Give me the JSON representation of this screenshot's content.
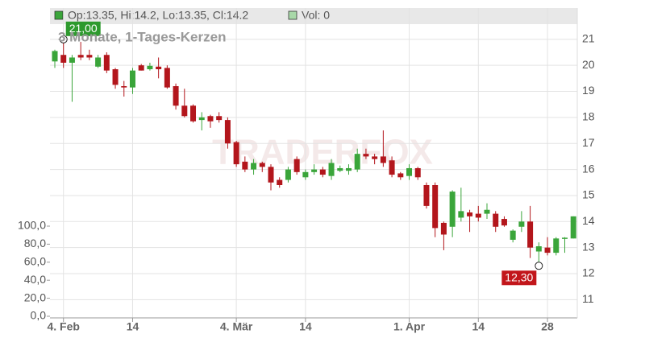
{
  "chart_data": {
    "type": "candlestick",
    "subtitle": "3 Monate, 1-Tages-Kerzen",
    "legend_text": "Op:13.35, Hi:14.2, Lo:13.35, Cl:14.2",
    "volume_label": "Vol: 0",
    "watermark": "TRADERFOX",
    "up_color": "#3aa53a",
    "down_color": "#b3161c",
    "categories": [
      null,
      "4. Feb",
      null,
      null,
      null,
      null,
      null,
      null,
      null,
      "14",
      null,
      null,
      null,
      null,
      null,
      null,
      null,
      null,
      null,
      null,
      null,
      "4. Mär",
      null,
      null,
      null,
      null,
      null,
      null,
      null,
      "14",
      null,
      null,
      null,
      null,
      null,
      null,
      null,
      null,
      null,
      null,
      null,
      "1. Apr",
      null,
      null,
      null,
      null,
      null,
      null,
      null,
      "14",
      null,
      null,
      null,
      null,
      null,
      null,
      null,
      "28",
      null,
      null,
      null
    ],
    "open": [
      20.15,
      20.4,
      20.1,
      20.4,
      20.4,
      19.95,
      20.4,
      19.85,
      19.2,
      19.15,
      20.0,
      19.85,
      19.95,
      19.9,
      19.2,
      18.45,
      18.45,
      17.9,
      18.05,
      18.05,
      17.9,
      17.05,
      16.3,
      16.0,
      16.25,
      16.1,
      15.6,
      15.6,
      16.4,
      15.7,
      15.9,
      16.0,
      15.75,
      15.95,
      15.95,
      16.0,
      16.6,
      16.5,
      16.5,
      16.35,
      15.85,
      15.75,
      16.05,
      15.4,
      15.4,
      13.95,
      13.8,
      14.15,
      14.35,
      14.3,
      14.3,
      14.3,
      14.1,
      13.3,
      13.8,
      14.0,
      12.85,
      13.0,
      12.8,
      13.35,
      13.35
    ],
    "high": [
      20.6,
      21.0,
      20.4,
      20.9,
      20.6,
      20.4,
      20.5,
      19.9,
      19.4,
      19.9,
      20.05,
      20.1,
      20.3,
      20.0,
      19.3,
      19.1,
      18.5,
      18.2,
      18.1,
      18.2,
      18.0,
      17.1,
      16.5,
      16.4,
      16.3,
      16.2,
      15.7,
      16.1,
      16.5,
      16.0,
      16.2,
      16.1,
      16.4,
      16.15,
      16.2,
      16.8,
      16.8,
      16.6,
      17.5,
      16.5,
      15.9,
      16.2,
      16.1,
      15.5,
      15.5,
      14.0,
      15.2,
      15.3,
      14.45,
      14.6,
      14.7,
      14.4,
      14.2,
      13.7,
      14.4,
      14.6,
      13.2,
      13.4,
      13.4,
      13.4,
      14.2
    ],
    "low": [
      19.9,
      19.9,
      18.6,
      20.2,
      20.2,
      19.9,
      19.7,
      19.1,
      18.8,
      18.9,
      19.8,
      19.8,
      19.5,
      19.1,
      18.3,
      18.0,
      17.8,
      17.5,
      17.6,
      17.8,
      16.8,
      16.1,
      15.9,
      15.8,
      15.9,
      15.2,
      15.3,
      15.5,
      15.8,
      15.6,
      15.8,
      15.7,
      15.6,
      15.9,
      15.8,
      15.9,
      16.4,
      16.2,
      16.1,
      15.7,
      15.6,
      15.6,
      15.6,
      14.5,
      13.4,
      12.9,
      13.4,
      14.0,
      13.6,
      14.0,
      14.1,
      13.6,
      13.8,
      13.2,
      13.6,
      12.6,
      12.3,
      12.7,
      12.7,
      12.8,
      13.35
    ],
    "close": [
      20.55,
      20.1,
      20.3,
      20.3,
      20.3,
      20.3,
      19.8,
      19.25,
      19.15,
      19.8,
      19.8,
      19.98,
      19.85,
      19.15,
      18.45,
      18.05,
      17.85,
      18.0,
      17.85,
      17.9,
      17.0,
      16.2,
      16.0,
      16.25,
      16.1,
      15.5,
      15.4,
      16.0,
      15.9,
      15.9,
      16.0,
      15.8,
      16.25,
      16.05,
      16.05,
      16.6,
      16.5,
      16.4,
      16.25,
      15.8,
      15.7,
      16.05,
      15.7,
      14.6,
      13.75,
      13.5,
      15.15,
      14.4,
      14.2,
      14.15,
      14.45,
      13.8,
      13.85,
      13.65,
      14.0,
      13.0,
      13.05,
      12.8,
      13.35,
      13.38,
      14.2
    ],
    "ylim": [
      10.3,
      22.2
    ],
    "yticks": [
      11,
      12,
      13,
      14,
      15,
      16,
      17,
      18,
      19,
      20,
      21
    ],
    "vol_ylim": [
      0,
      100
    ],
    "vol_yticks": [
      {
        "value": 0,
        "label": "0,0"
      },
      {
        "value": 20,
        "label": "20,0"
      },
      {
        "value": 40,
        "label": "40,0"
      },
      {
        "value": 60,
        "label": "60,0"
      },
      {
        "value": 80,
        "label": "80,0"
      },
      {
        "value": 100,
        "label": "100,0"
      }
    ],
    "grid": true,
    "annotations": [
      {
        "value": 21,
        "label": "21,00",
        "color": "#2e9a2e",
        "ref": "high"
      },
      {
        "value": 12.3,
        "label": "12,30",
        "color": "#c2161b",
        "ref": "low"
      }
    ]
  }
}
